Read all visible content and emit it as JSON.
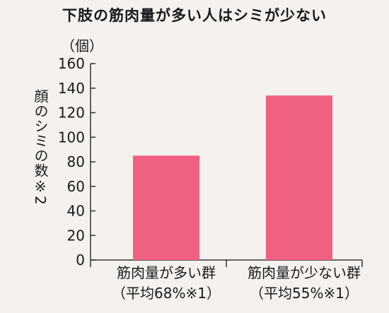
{
  "title": "下肢の筋肉量が多い人はシミが少ない",
  "unit_label": "（個）",
  "ylabel": "顔のシミの数※2",
  "chart_data": {
    "type": "bar",
    "title": "下肢の筋肉量が多い人はシミが少ない",
    "ylabel": "顔のシミの数※2",
    "unit": "（個）",
    "ylim": [
      0,
      160
    ],
    "yticks": [
      0,
      20,
      40,
      60,
      80,
      100,
      120,
      140,
      160
    ],
    "categories": [
      {
        "line1": "筋肉量が多い群",
        "line2": "（平均68%※1）"
      },
      {
        "line1": "筋肉量が少ない群",
        "line2": "（平均55%※1）"
      }
    ],
    "values": [
      85,
      134
    ],
    "bar_color": "#f06080",
    "grid": false
  }
}
